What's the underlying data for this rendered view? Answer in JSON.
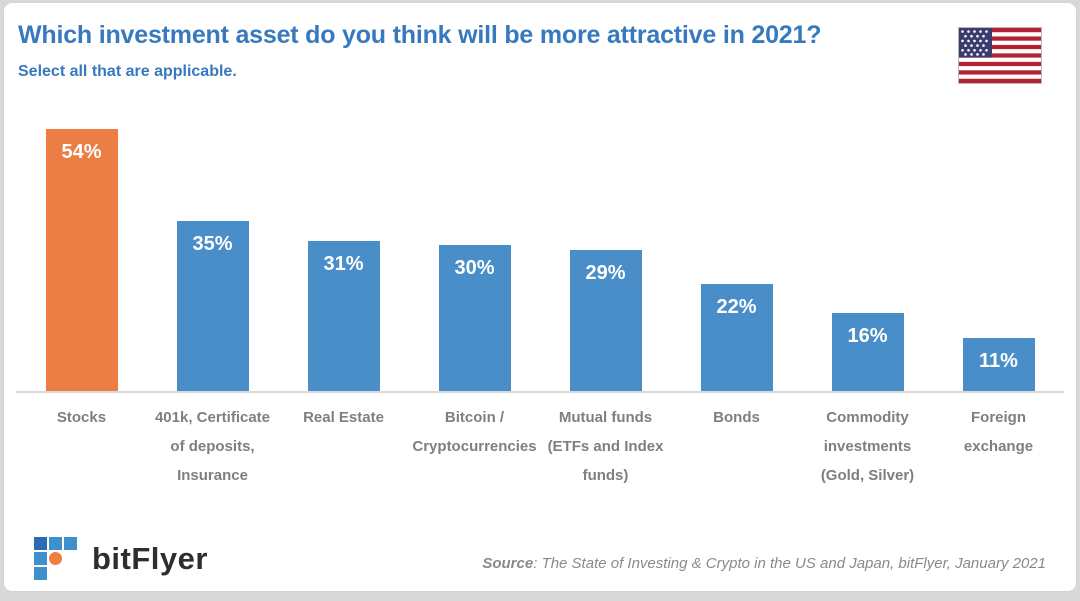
{
  "header": {
    "title": "Which investment asset do you think will be more attractive in 2021?",
    "subtitle": "Select all that are applicable.",
    "flag_icon": "us-flag"
  },
  "chart_data": {
    "type": "bar",
    "title": "Which investment asset do you think will be more attractive in 2021?",
    "subtitle": "Select all that are applicable.",
    "categories": [
      "Stocks",
      "401k, Certificate of deposits, Insurance",
      "Real Estate",
      "Bitcoin / Cryptocurrencies",
      "Mutual funds (ETFs and Index funds)",
      "Bonds",
      "Commodity investments (Gold, Silver)",
      "Foreign exchange"
    ],
    "categories_lines": [
      [
        "Stocks"
      ],
      [
        "401k, Certificate",
        "of deposits,",
        "Insurance"
      ],
      [
        "Real Estate"
      ],
      [
        "Bitcoin /",
        "Cryptocurrencies"
      ],
      [
        "Mutual funds",
        "(ETFs and Index",
        "funds)"
      ],
      [
        "Bonds"
      ],
      [
        "Commodity",
        "investments",
        "(Gold, Silver)"
      ],
      [
        "Foreign",
        "exchange"
      ]
    ],
    "values": [
      54,
      35,
      31,
      30,
      29,
      22,
      16,
      11
    ],
    "value_labels": [
      "54%",
      "35%",
      "31%",
      "30%",
      "29%",
      "22%",
      "16%",
      "11%"
    ],
    "value_suffix": "%",
    "ylim": [
      0,
      54
    ],
    "grid": false,
    "legend": false,
    "highlight_index": 0,
    "highlight_color": "#EC7E45",
    "bar_color": "#4A8EC9",
    "value_label_color": "#FFFFFF",
    "category_label_color": "#7F7F7F",
    "axis_color": "#D9D9D9",
    "value_label_position": "inside-top"
  },
  "footer": {
    "logo_text": "bitFlyer",
    "source_label": "Source",
    "source_text": ": The State of Investing & Crypto in the US and Japan, bitFlyer, January 2021"
  },
  "colors": {
    "title_blue": "#3779BE",
    "card_border": "#D4D4D4",
    "page_background": "#D8D8D8"
  }
}
